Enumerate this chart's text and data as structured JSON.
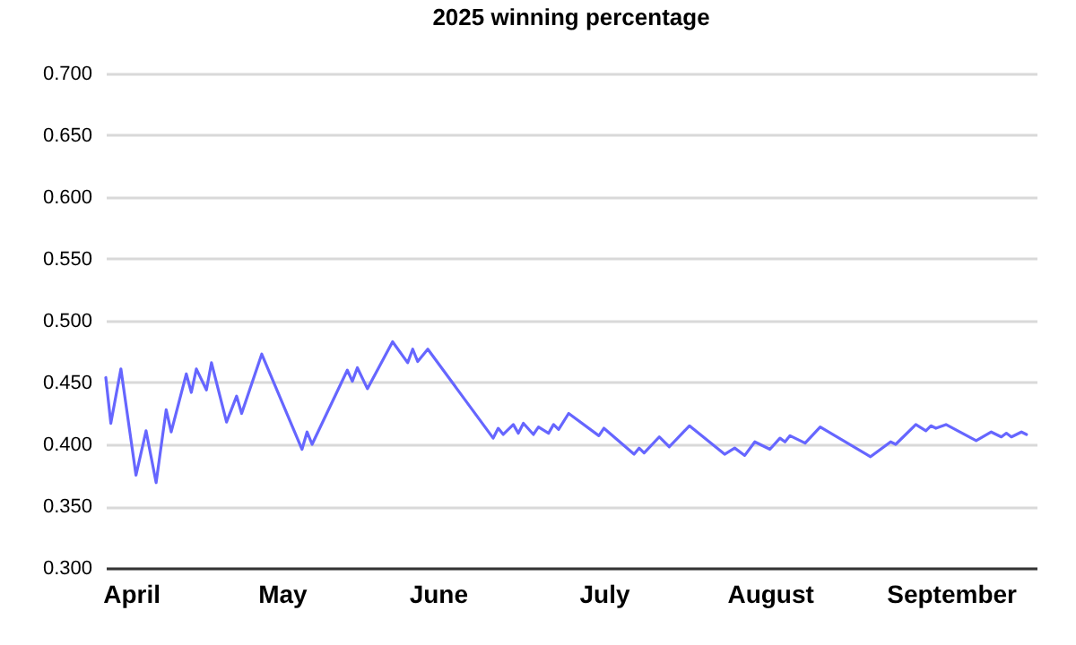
{
  "chart_data": {
    "type": "line",
    "title": "2025 winning percentage",
    "x": [
      "2025-03-27",
      "2025-03-28",
      "2025-03-30",
      "2025-04-02",
      "2025-04-04",
      "2025-04-06",
      "2025-04-08",
      "2025-04-09",
      "2025-04-12",
      "2025-04-13",
      "2025-04-14",
      "2025-04-16",
      "2025-04-17",
      "2025-04-20",
      "2025-04-22",
      "2025-04-23",
      "2025-04-27",
      "2025-05-05",
      "2025-05-06",
      "2025-05-07",
      "2025-05-14",
      "2025-05-15",
      "2025-05-16",
      "2025-05-18",
      "2025-05-23",
      "2025-05-26",
      "2025-05-27",
      "2025-05-28",
      "2025-05-30",
      "2025-06-12",
      "2025-06-13",
      "2025-06-14",
      "2025-06-16",
      "2025-06-17",
      "2025-06-18",
      "2025-06-20",
      "2025-06-21",
      "2025-06-23",
      "2025-06-24",
      "2025-06-25",
      "2025-06-27",
      "2025-07-03",
      "2025-07-04",
      "2025-07-10",
      "2025-07-11",
      "2025-07-12",
      "2025-07-15",
      "2025-07-17",
      "2025-07-21",
      "2025-07-28",
      "2025-07-30",
      "2025-08-01",
      "2025-08-03",
      "2025-08-06",
      "2025-08-08",
      "2025-08-09",
      "2025-08-10",
      "2025-08-13",
      "2025-08-16",
      "2025-08-26",
      "2025-08-30",
      "2025-08-31",
      "2025-09-04",
      "2025-09-06",
      "2025-09-07",
      "2025-09-08",
      "2025-09-10",
      "2025-09-16",
      "2025-09-19",
      "2025-09-21",
      "2025-09-22",
      "2025-09-23",
      "2025-09-25",
      "2025-09-26"
    ],
    "series": [
      {
        "color": "#6666ff",
        "values": [
          0.454,
          0.417,
          0.461,
          0.375,
          0.411,
          0.369,
          0.428,
          0.41,
          0.457,
          0.442,
          0.461,
          0.444,
          0.466,
          0.418,
          0.439,
          0.425,
          0.473,
          0.396,
          0.41,
          0.4,
          0.46,
          0.451,
          0.462,
          0.445,
          0.483,
          0.466,
          0.477,
          0.467,
          0.477,
          0.405,
          0.413,
          0.408,
          0.416,
          0.409,
          0.417,
          0.408,
          0.414,
          0.409,
          0.416,
          0.412,
          0.425,
          0.407,
          0.413,
          0.392,
          0.397,
          0.393,
          0.406,
          0.398,
          0.415,
          0.392,
          0.397,
          0.391,
          0.402,
          0.396,
          0.405,
          0.402,
          0.407,
          0.401,
          0.414,
          0.39,
          0.402,
          0.4,
          0.416,
          0.411,
          0.415,
          0.413,
          0.416,
          0.403,
          0.41,
          0.406,
          0.409,
          0.406,
          0.41,
          0.408
        ]
      }
    ],
    "xlim": [
      "2025-03-27",
      "2025-09-28"
    ],
    "xticks": [
      {
        "value": "2025-04-01",
        "label": "April"
      },
      {
        "value": "2025-05-01",
        "label": "May"
      },
      {
        "value": "2025-06-01",
        "label": "June"
      },
      {
        "value": "2025-07-04",
        "label": "July"
      },
      {
        "value": "2025-08-06",
        "label": "August"
      },
      {
        "value": "2025-09-11",
        "label": "September"
      }
    ],
    "ylim": [
      0.3,
      0.7
    ],
    "yticks": [
      {
        "value": 0.3,
        "label": "0.300"
      },
      {
        "value": 0.35,
        "label": "0.350"
      },
      {
        "value": 0.4,
        "label": "0.400"
      },
      {
        "value": 0.45,
        "label": "0.450"
      },
      {
        "value": 0.5,
        "label": "0.500"
      },
      {
        "value": 0.55,
        "label": "0.550"
      },
      {
        "value": 0.6,
        "label": "0.600"
      },
      {
        "value": 0.65,
        "label": "0.650"
      },
      {
        "value": 0.7,
        "label": "0.700"
      }
    ],
    "grid": "y",
    "marker": "none",
    "line_style": "solid"
  }
}
